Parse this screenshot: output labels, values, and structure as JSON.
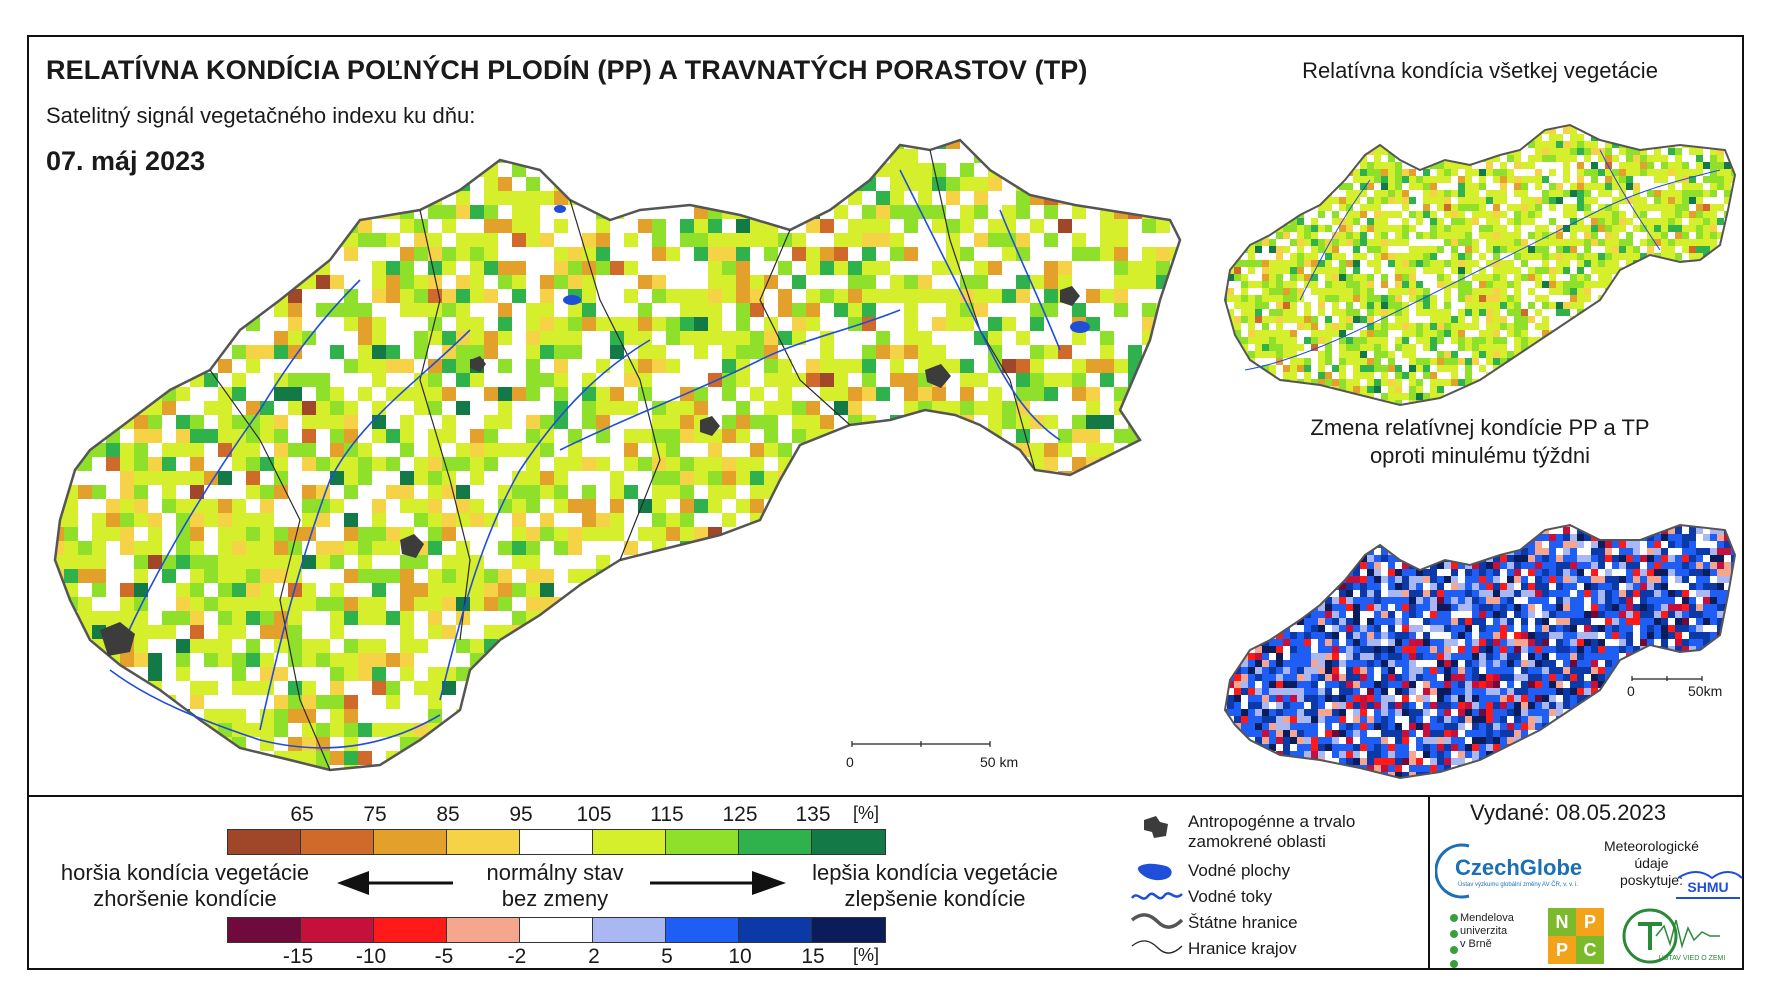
{
  "header": {
    "title": "RELATÍVNA KONDÍCIA POĽNÝCH PLODÍN (PP) A TRAVNATÝCH PORASTOV (TP)",
    "subtitle": "Satelitný signál vegetačného indexu ku dňu:",
    "date": "07. máj 2023"
  },
  "insets": {
    "top_title": "Relatívna kondícia všetkej vegetácie",
    "bottom_title_line1": "Zmena relatívnej kondície PP a TP",
    "bottom_title_line2": "oproti minulému týždni"
  },
  "scalebars": {
    "main_start": "0",
    "main_end": "50 km",
    "inset_start": "0",
    "inset_end": "50km"
  },
  "legend": {
    "condition_ticks": [
      "65",
      "75",
      "85",
      "95",
      "105",
      "115",
      "125",
      "135",
      "[%]"
    ],
    "condition_colors": [
      "#a0472a",
      "#cf6a2a",
      "#e3a12c",
      "#f6d246",
      "#ffffff",
      "#d6ef2c",
      "#8fe02a",
      "#2fb24c",
      "#137a47"
    ],
    "change_ticks": [
      "-15",
      "-10",
      "-5",
      "-2",
      "2",
      "5",
      "10",
      "15",
      "[%]"
    ],
    "change_colors": [
      "#6e0a3c",
      "#c4103a",
      "#ff1a1a",
      "#f6a58e",
      "#ffffff",
      "#a9b8f2",
      "#1f5ef5",
      "#0b3aa8",
      "#0b1c5a"
    ],
    "worse_line1": "horšia kondícia vegetácie",
    "worse_line2": "zhoršenie kondície",
    "normal_line1": "normálny stav",
    "normal_line2": "bez zmeny",
    "better_line1": "lepšia kondícia vegetácie",
    "better_line2": "zlepšenie kondície"
  },
  "layers": {
    "anthropogenic_line1": "Antropogénne a trvalo",
    "anthropogenic_line2": "zamokrené oblasti",
    "water_bodies": "Vodné plochy",
    "rivers": "Vodné toky",
    "state_borders": "Štátne hranice",
    "region_borders": "Hranice krajov"
  },
  "footer": {
    "issued": "Vydané: 08.05.2023",
    "czechglobe": "CzechGlobe",
    "czechglobe_sub": "Ústav výzkumu globální změny AV ČR, v. v. i.",
    "met_line1": "Meteorologické",
    "met_line2": "údaje",
    "met_line3": "poskytuje:",
    "shmu": "SHMU",
    "mendel_line1": "Mendelova",
    "mendel_line2": "univerzita",
    "mendel_line3": "v Brně",
    "nppc": [
      "N",
      "P",
      "P",
      "C"
    ],
    "uvz": "ÚSTAV VIED O ZEMI"
  }
}
